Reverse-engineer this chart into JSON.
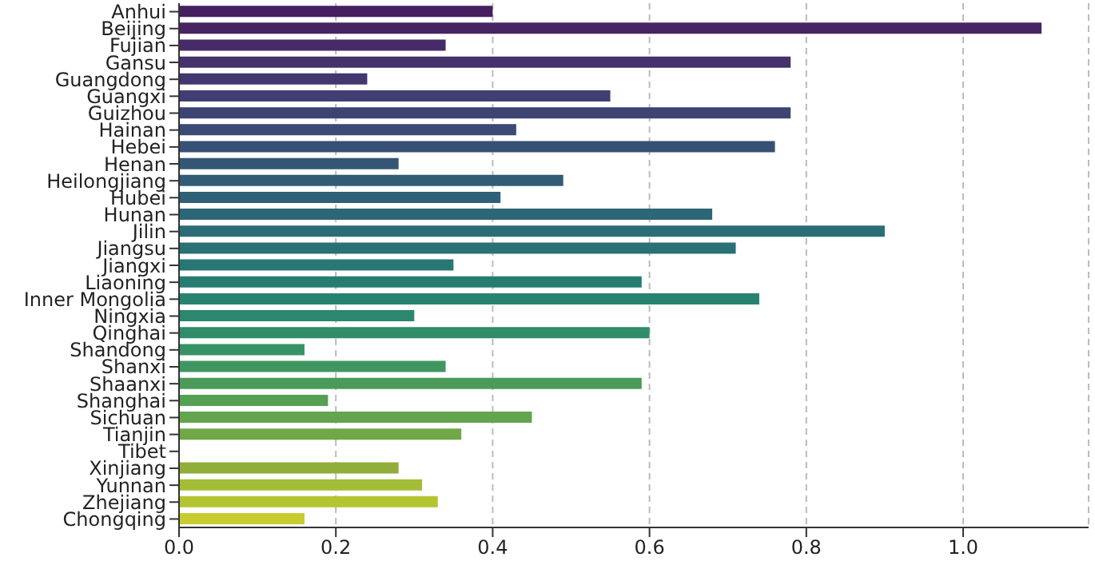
{
  "chart_data": {
    "type": "bar",
    "orientation": "horizontal",
    "categories": [
      "Anhui",
      "Beijing",
      "Fujian",
      "Gansu",
      "Guangdong",
      "Guangxi",
      "Guizhou",
      "Hainan",
      "Hebei",
      "Henan",
      "Heilongjiang",
      "Hubei",
      "Hunan",
      "Jilin",
      "Jiangsu",
      "Jiangxi",
      "Liaoning",
      "Inner Mongolia",
      "Ningxia",
      "Qinghai",
      "Shandong",
      "Shanxi",
      "Shaanxi",
      "Shanghai",
      "Sichuan",
      "Tianjin",
      "Tibet",
      "Xinjiang",
      "Yunnan",
      "Zhejiang",
      "Chongqing"
    ],
    "values": [
      0.4,
      1.1,
      0.34,
      0.78,
      0.24,
      0.55,
      0.78,
      0.43,
      0.76,
      0.28,
      0.49,
      0.41,
      0.68,
      0.9,
      0.71,
      0.35,
      0.59,
      0.74,
      0.3,
      0.6,
      0.16,
      0.34,
      0.59,
      0.19,
      0.45,
      0.36,
      0,
      0.28,
      0.31,
      0.33,
      0.16
    ],
    "colors": [
      "#45205f",
      "#472462",
      "#462b68",
      "#45316c",
      "#43376f",
      "#403e72",
      "#3d4473",
      "#3a4a74",
      "#375075",
      "#345675",
      "#325b76",
      "#2f6176",
      "#2d6676",
      "#2b6c76",
      "#297175",
      "#287774",
      "#277c72",
      "#288270",
      "#2b876d",
      "#308c69",
      "#379265",
      "#409660",
      "#4a9b5a",
      "#56a054",
      "#63a44e",
      "#71a847",
      "#80ab40",
      "#90ae39",
      "#a3bd37",
      "#b5c532",
      "#c7cc2e"
    ],
    "xlim": [
      0,
      1.16
    ],
    "xticks": [
      {
        "value": 0,
        "label": "0.0"
      },
      {
        "value": 0.2,
        "label": "0.2"
      },
      {
        "value": 0.4,
        "label": "0.4"
      },
      {
        "value": 0.6,
        "label": "0.6"
      },
      {
        "value": 0.8,
        "label": "0.8"
      },
      {
        "value": 1.0,
        "label": "1.0"
      }
    ],
    "grid": "x"
  }
}
